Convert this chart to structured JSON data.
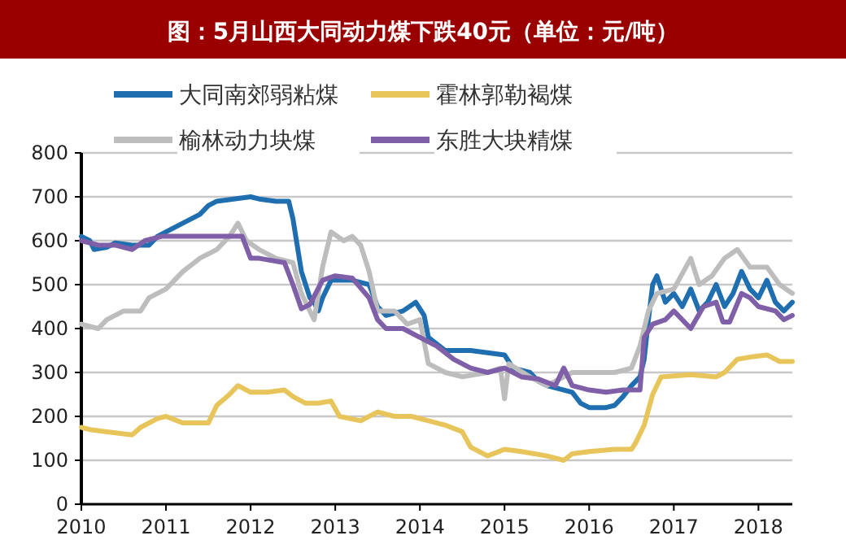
{
  "chart_data": {
    "type": "line",
    "title": "图：5月山西大同动力煤下跌40元（单位：元/吨）",
    "xlim": [
      2010,
      2018.4
    ],
    "xticks": [
      2010,
      2011,
      2012,
      2013,
      2014,
      2015,
      2016,
      2017,
      2018
    ],
    "ylim": [
      0,
      800
    ],
    "yticks": [
      0,
      100,
      200,
      300,
      400,
      500,
      600,
      700,
      800
    ],
    "grid": "y",
    "legend": "top",
    "line_style": "solid",
    "series": [
      {
        "name": "大同南郊弱粘煤",
        "color": "#1f6fb0",
        "x": [
          2010,
          2010.1,
          2010.15,
          2010.3,
          2010.4,
          2010.6,
          2010.8,
          2010.9,
          2011,
          2011.2,
          2011.4,
          2011.5,
          2011.6,
          2011.8,
          2012,
          2012.1,
          2012.3,
          2012.45,
          2012.5,
          2012.55,
          2012.6,
          2012.7,
          2012.75,
          2012.8,
          2012.85,
          2012.95,
          2013.2,
          2013.4,
          2013.5,
          2013.6,
          2013.8,
          2013.95,
          2014.05,
          2014.1,
          2014.3,
          2014.6,
          2015,
          2015.1,
          2015.3,
          2015.4,
          2015.5,
          2015.6,
          2015.8,
          2015.9,
          2016,
          2016.2,
          2016.3,
          2016.4,
          2016.5,
          2016.6,
          2016.65,
          2016.7,
          2016.75,
          2016.8,
          2016.9,
          2017,
          2017.1,
          2017.2,
          2017.3,
          2017.4,
          2017.5,
          2017.6,
          2017.7,
          2017.8,
          2017.9,
          2018,
          2018.1,
          2018.2,
          2018.3,
          2018.4
        ],
        "values": [
          610,
          600,
          580,
          585,
          595,
          590,
          590,
          610,
          620,
          640,
          660,
          680,
          690,
          695,
          700,
          695,
          690,
          690,
          650,
          590,
          530,
          470,
          460,
          440,
          470,
          510,
          510,
          500,
          450,
          430,
          440,
          460,
          430,
          380,
          350,
          350,
          340,
          310,
          300,
          280,
          270,
          265,
          255,
          230,
          220,
          220,
          225,
          245,
          270,
          290,
          330,
          420,
          500,
          520,
          460,
          480,
          450,
          490,
          440,
          460,
          500,
          450,
          480,
          530,
          490,
          470,
          510,
          460,
          440,
          460
        ]
      },
      {
        "name": "霍林郭勒褐煤",
        "color": "#e8c55a",
        "x": [
          2010,
          2010.1,
          2010.3,
          2010.5,
          2010.6,
          2010.7,
          2010.9,
          2011,
          2011.2,
          2011.4,
          2011.5,
          2011.6,
          2011.75,
          2011.85,
          2012,
          2012.2,
          2012.4,
          2012.5,
          2012.65,
          2012.8,
          2012.95,
          2013.05,
          2013.3,
          2013.5,
          2013.7,
          2013.9,
          2014.1,
          2014.3,
          2014.5,
          2014.6,
          2014.8,
          2015,
          2015.2,
          2015.5,
          2015.7,
          2015.8,
          2016,
          2016.3,
          2016.5,
          2016.55,
          2016.65,
          2016.75,
          2016.85,
          2017.2,
          2017.5,
          2017.6,
          2017.75,
          2017.9,
          2018.1,
          2018.25,
          2018.4
        ],
        "values": [
          175,
          170,
          165,
          160,
          158,
          175,
          195,
          200,
          185,
          185,
          185,
          225,
          250,
          270,
          255,
          255,
          260,
          245,
          230,
          230,
          235,
          200,
          190,
          210,
          200,
          200,
          190,
          180,
          165,
          130,
          110,
          125,
          120,
          110,
          100,
          115,
          120,
          125,
          125,
          140,
          180,
          250,
          290,
          295,
          290,
          300,
          330,
          335,
          340,
          325,
          325
        ]
      },
      {
        "name": "榆林动力块煤",
        "color": "#bdbdbd",
        "x": [
          2010,
          2010.2,
          2010.3,
          2010.5,
          2010.7,
          2010.8,
          2011,
          2011.2,
          2011.4,
          2011.6,
          2011.75,
          2011.85,
          2011.95,
          2012.1,
          2012.3,
          2012.5,
          2012.6,
          2012.75,
          2012.85,
          2012.95,
          2013.1,
          2013.2,
          2013.3,
          2013.4,
          2013.5,
          2013.7,
          2013.85,
          2014,
          2014.1,
          2014.3,
          2014.5,
          2014.8,
          2014.95,
          2015,
          2015.05,
          2015.3,
          2015.5,
          2015.8,
          2016,
          2016.3,
          2016.5,
          2016.6,
          2016.7,
          2016.8,
          2017,
          2017.2,
          2017.3,
          2017.45,
          2017.6,
          2017.75,
          2017.9,
          2018.1,
          2018.25,
          2018.4
        ],
        "values": [
          410,
          400,
          420,
          440,
          440,
          470,
          490,
          530,
          560,
          580,
          610,
          640,
          600,
          580,
          560,
          550,
          480,
          420,
          540,
          620,
          600,
          610,
          590,
          530,
          440,
          440,
          410,
          420,
          320,
          300,
          290,
          300,
          310,
          240,
          320,
          290,
          270,
          300,
          300,
          300,
          310,
          360,
          440,
          480,
          490,
          560,
          500,
          520,
          560,
          580,
          540,
          540,
          500,
          480
        ]
      },
      {
        "name": "东胜大块精煤",
        "color": "#7f5fa8",
        "x": [
          2010,
          2010.2,
          2010.4,
          2010.6,
          2010.75,
          2010.95,
          2011.2,
          2011.6,
          2011.9,
          2012,
          2012.1,
          2012.4,
          2012.5,
          2012.6,
          2012.7,
          2012.85,
          2013,
          2013.2,
          2013.4,
          2013.5,
          2013.6,
          2013.8,
          2014,
          2014.2,
          2014.4,
          2014.6,
          2014.8,
          2015,
          2015.2,
          2015.4,
          2015.6,
          2015.7,
          2015.8,
          2016,
          2016.2,
          2016.4,
          2016.6,
          2016.65,
          2016.75,
          2016.9,
          2017,
          2017.2,
          2017.35,
          2017.5,
          2017.58,
          2017.66,
          2017.8,
          2017.9,
          2018,
          2018.2,
          2018.3,
          2018.4
        ],
        "values": [
          600,
          590,
          590,
          580,
          600,
          610,
          610,
          610,
          610,
          560,
          560,
          550,
          500,
          445,
          455,
          510,
          520,
          515,
          470,
          420,
          400,
          400,
          380,
          360,
          330,
          310,
          300,
          310,
          290,
          285,
          270,
          310,
          270,
          260,
          255,
          260,
          260,
          380,
          410,
          420,
          440,
          400,
          450,
          460,
          415,
          415,
          480,
          470,
          450,
          440,
          420,
          430
        ]
      }
    ]
  }
}
